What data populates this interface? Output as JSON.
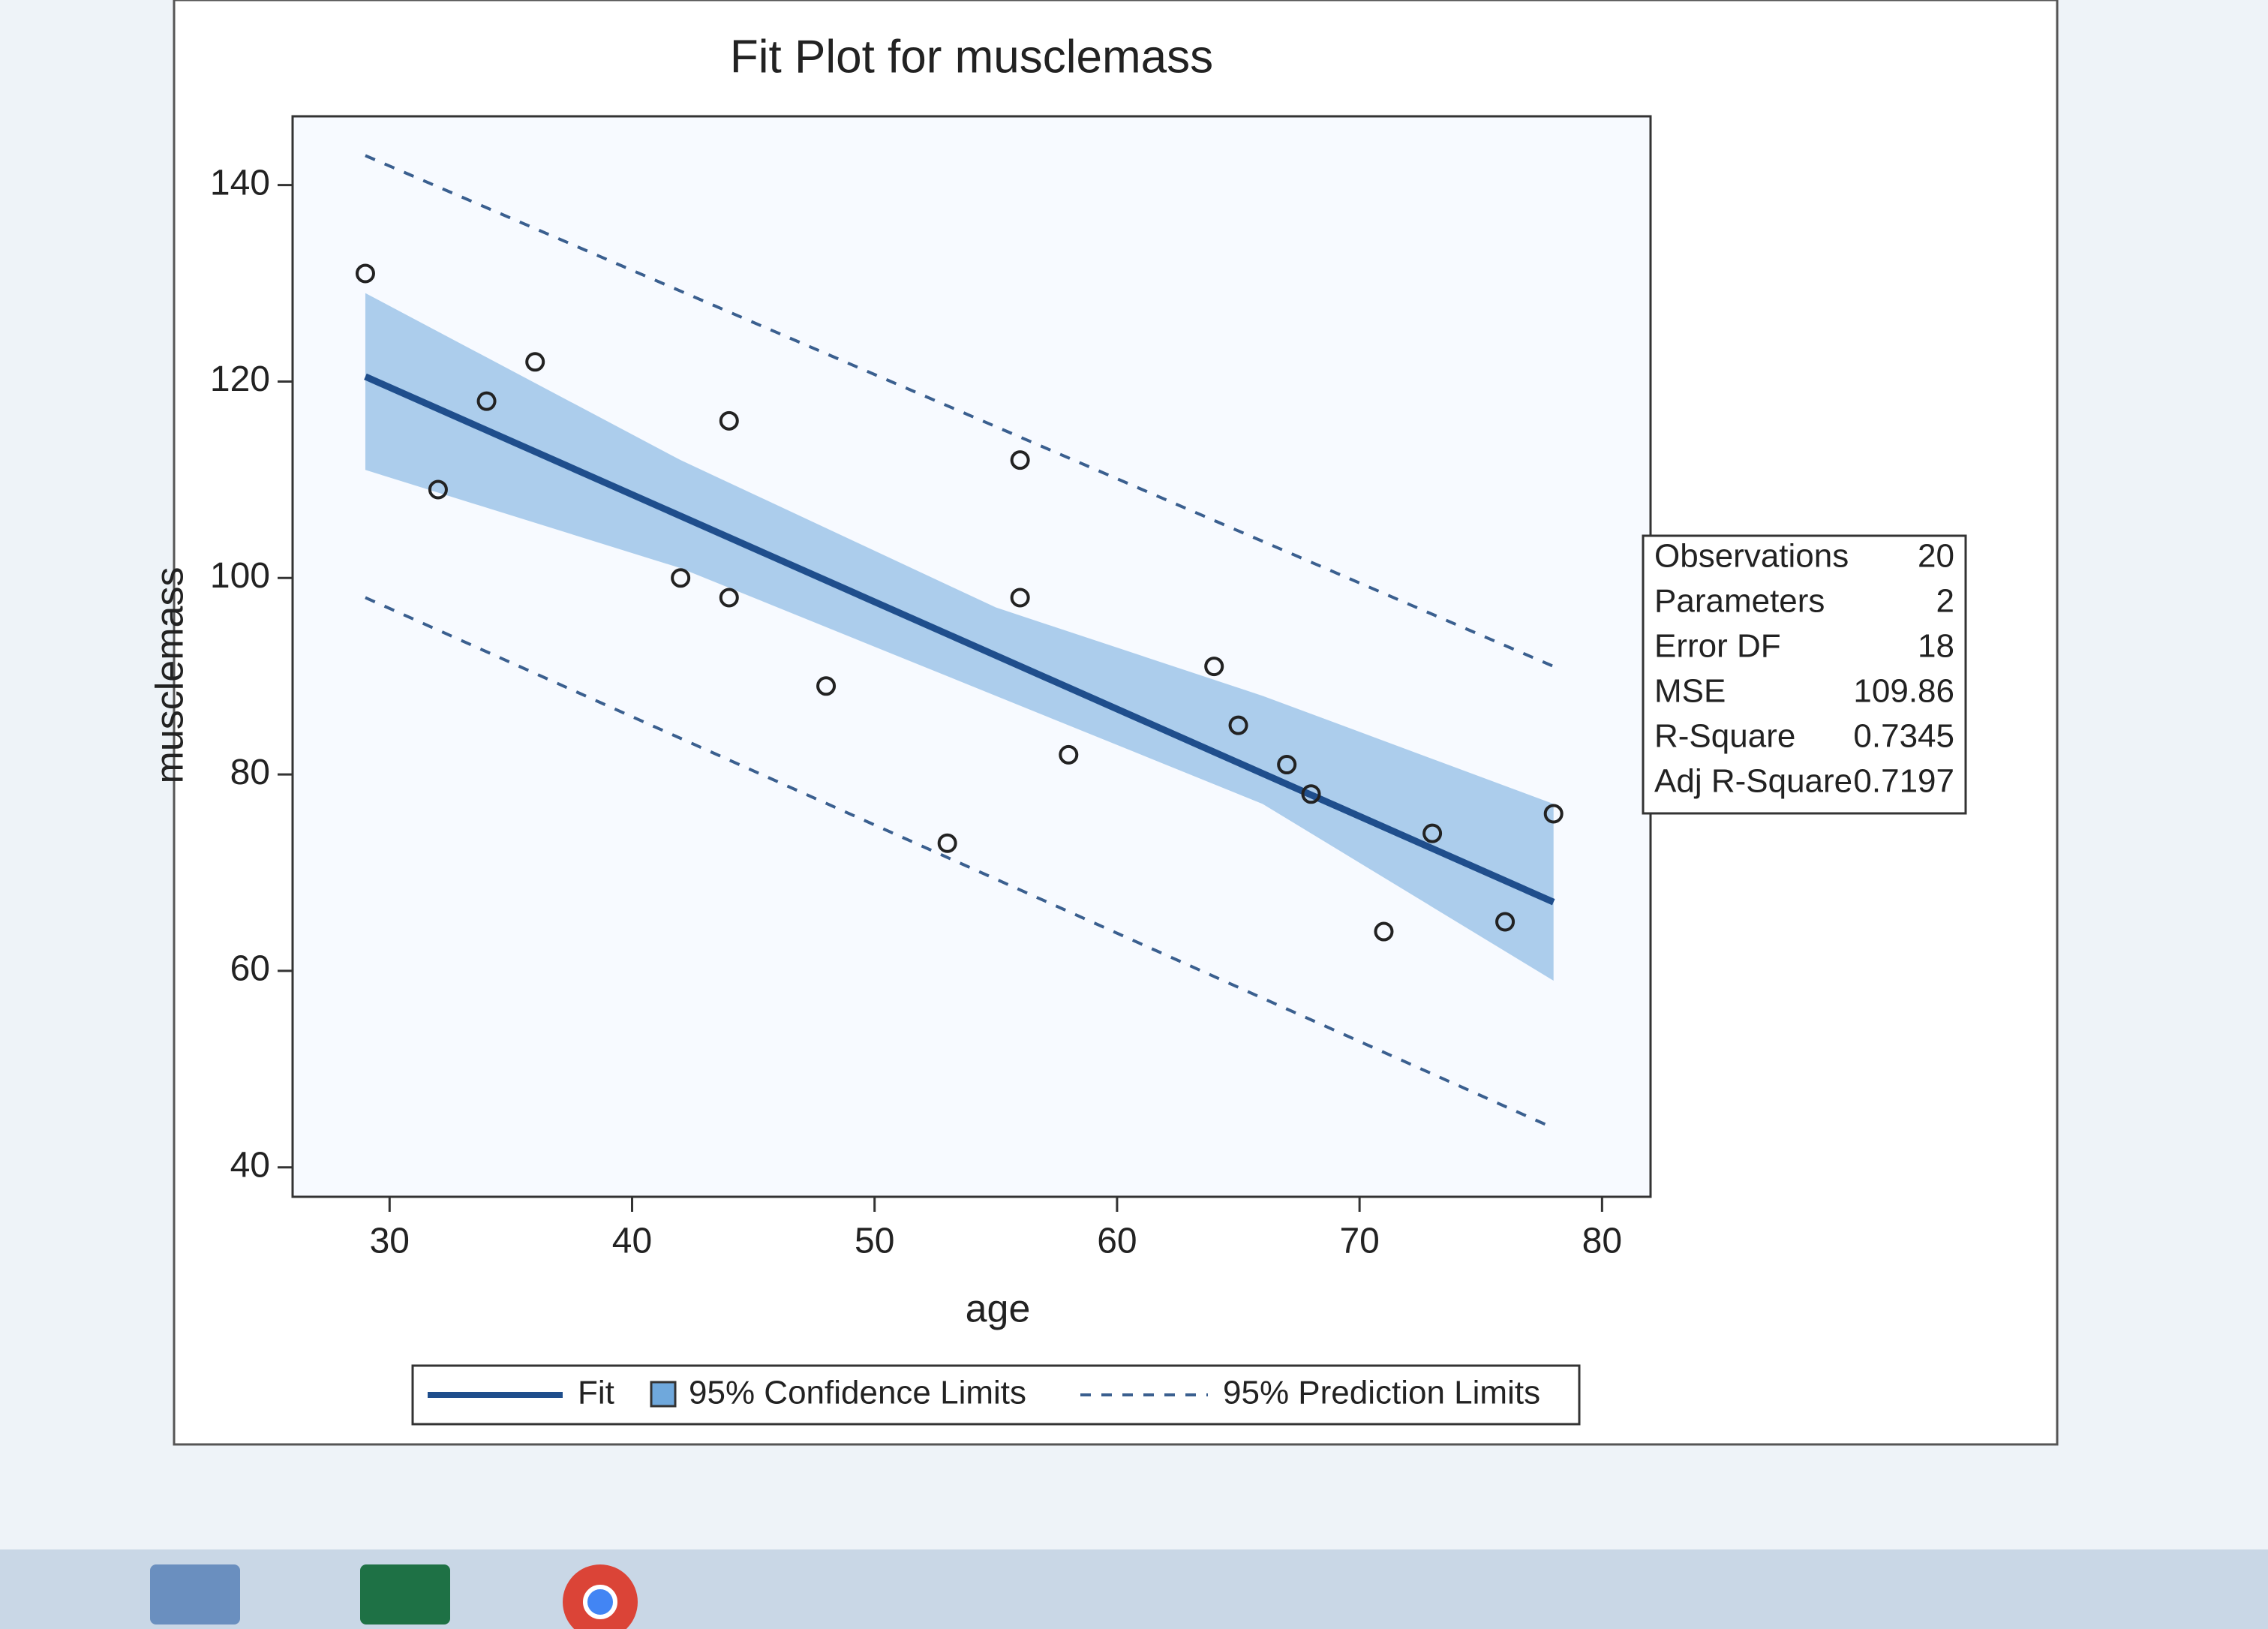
{
  "chart_data": {
    "type": "scatter",
    "title": "Fit Plot for musclemass",
    "x_label": "age",
    "y_label": "musclemass",
    "x": [
      29,
      32,
      34,
      36,
      42,
      44,
      44,
      48,
      53,
      56,
      56,
      58,
      64,
      65,
      67,
      68,
      71,
      73,
      76,
      78
    ],
    "values": [
      131,
      109,
      118,
      122,
      100,
      116,
      98,
      89,
      73,
      112,
      98,
      82,
      91,
      85,
      81,
      78,
      64,
      74,
      65,
      76
    ],
    "point_color": "#222222",
    "xlim": [
      26,
      82
    ],
    "ylim": [
      37,
      147
    ],
    "xticks": [
      30,
      40,
      50,
      60,
      70,
      80
    ],
    "yticks": [
      40,
      60,
      80,
      100,
      120,
      140
    ],
    "fit": {
      "name": "Fit",
      "color": "#1f4e8c",
      "x": [
        29,
        78
      ],
      "values": [
        120.5,
        67
      ]
    },
    "confidence": {
      "name": "95% Confidence Limits",
      "color": "#6fa8dc",
      "x": [
        29,
        42,
        55,
        66,
        78
      ],
      "upper": [
        129,
        112,
        97,
        88,
        77
      ],
      "lower": [
        111,
        101,
        88,
        77,
        59
      ]
    },
    "prediction": {
      "name": "95% Prediction Limits",
      "color": "#3a5f8f",
      "x": [
        29,
        78
      ],
      "upper": [
        143,
        91
      ],
      "lower": [
        98,
        44
      ]
    },
    "fit_statistics": [
      {
        "label": "Observations",
        "value": 20
      },
      {
        "label": "Parameters",
        "value": 2
      },
      {
        "label": "Error DF",
        "value": 18
      },
      {
        "label": "MSE",
        "value": 109.86
      },
      {
        "label": "R-Square",
        "value": 0.7345
      },
      {
        "label": "Adj R-Square",
        "value": 0.7197
      }
    ]
  }
}
